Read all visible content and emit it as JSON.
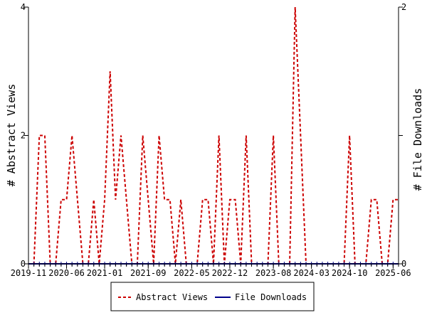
{
  "chart_data": {
    "type": "line",
    "title": "",
    "xlabel": "",
    "ylabel_left": "# Abstract Views",
    "ylabel_right": "# File Downloads",
    "ylim_left": [
      0,
      4
    ],
    "ylim_right": [
      0,
      2
    ],
    "yticks_left": [
      "0",
      "2",
      "4"
    ],
    "yticks_right": [
      "0",
      "1",
      "2"
    ],
    "x_start": "2019-11",
    "x_end": "2025-07",
    "xtick_labels": [
      "2019-11",
      "2020-06",
      "2021-01",
      "2021-09",
      "2022-05",
      "2022-12",
      "2023-08",
      "2024-03",
      "2024-10",
      "2025-06"
    ],
    "grid": false,
    "legend_position": "bottom",
    "x": [
      "2019-11",
      "2019-12",
      "2020-01",
      "2020-02",
      "2020-03",
      "2020-04",
      "2020-05",
      "2020-06",
      "2020-07",
      "2020-08",
      "2020-09",
      "2020-10",
      "2020-11",
      "2020-12",
      "2021-01",
      "2021-02",
      "2021-03",
      "2021-04",
      "2021-05",
      "2021-06",
      "2021-07",
      "2021-08",
      "2021-09",
      "2021-10",
      "2021-11",
      "2021-12",
      "2022-01",
      "2022-02",
      "2022-03",
      "2022-04",
      "2022-05",
      "2022-06",
      "2022-07",
      "2022-08",
      "2022-09",
      "2022-10",
      "2022-11",
      "2022-12",
      "2023-01",
      "2023-02",
      "2023-03",
      "2023-04",
      "2023-05",
      "2023-06",
      "2023-07",
      "2023-08",
      "2023-09",
      "2023-10",
      "2023-11",
      "2023-12",
      "2024-01",
      "2024-02",
      "2024-03",
      "2024-04",
      "2024-05",
      "2024-06",
      "2024-07",
      "2024-08",
      "2024-09",
      "2024-10",
      "2024-11",
      "2024-12",
      "2025-01",
      "2025-02",
      "2025-03",
      "2025-04",
      "2025-05",
      "2025-06",
      "2025-07"
    ],
    "series": [
      {
        "name": "Abstract Views",
        "color": "#cc0000",
        "dash": true,
        "axis": "left",
        "values": [
          0,
          0,
          2,
          2,
          0,
          0,
          1,
          1,
          2,
          1,
          0,
          0,
          1,
          0,
          1,
          3,
          1,
          2,
          1,
          0,
          0,
          2,
          1,
          0,
          2,
          1,
          1,
          0,
          1,
          0,
          0,
          0,
          1,
          1,
          0,
          2,
          0,
          1,
          1,
          0,
          2,
          0,
          0,
          0,
          0,
          2,
          0,
          0,
          0,
          4,
          2,
          0,
          0,
          0,
          0,
          0,
          0,
          0,
          0,
          2,
          0,
          0,
          0,
          1,
          1,
          0,
          0,
          1,
          1
        ]
      },
      {
        "name": "File Downloads",
        "color": "#00008b",
        "dash": false,
        "axis": "right",
        "values": [
          0,
          0,
          0,
          0,
          0,
          0,
          0,
          0,
          0,
          0,
          0,
          0,
          0,
          0,
          0,
          0,
          0,
          0,
          0,
          0,
          0,
          0,
          0,
          0,
          0,
          0,
          0,
          0,
          0,
          0,
          0,
          0,
          0,
          0,
          0,
          0,
          0,
          0,
          0,
          0,
          0,
          0,
          0,
          0,
          0,
          0,
          0,
          0,
          0,
          0,
          0,
          0,
          0,
          0,
          0,
          0,
          0,
          0,
          0,
          0,
          0,
          0,
          0,
          0,
          0,
          0,
          0,
          0,
          0
        ]
      }
    ]
  }
}
